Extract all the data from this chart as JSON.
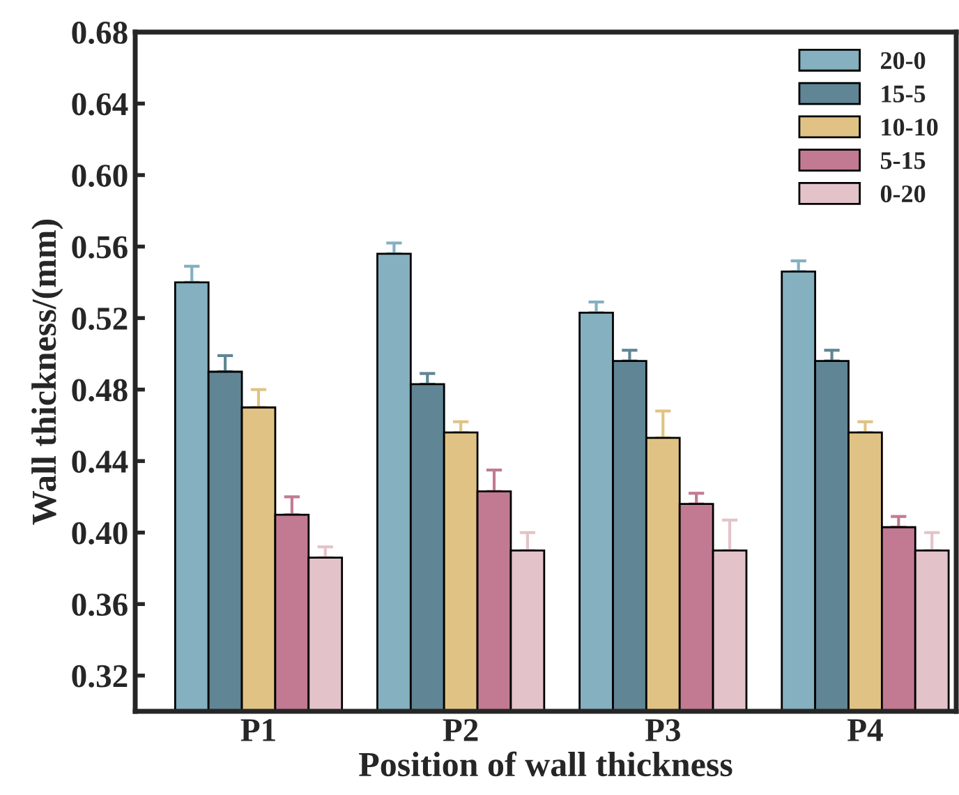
{
  "chart_data": {
    "type": "bar",
    "xlabel": "Position of wall thickness",
    "ylabel": "Wall thickness/(mm)",
    "categories": [
      "P1",
      "P2",
      "P3",
      "P4"
    ],
    "series": [
      {
        "name": "20-0",
        "color": "#84b0c0",
        "values": [
          0.54,
          0.556,
          0.523,
          0.546
        ],
        "errors": [
          [
            0.54,
            0.549
          ],
          [
            0.556,
            0.562
          ],
          [
            0.523,
            0.529
          ],
          [
            0.546,
            0.552
          ]
        ]
      },
      {
        "name": "15-5",
        "color": "#608595",
        "values": [
          0.49,
          0.483,
          0.496,
          0.496
        ],
        "errors": [
          [
            0.49,
            0.499
          ],
          [
            0.483,
            0.489
          ],
          [
            0.496,
            0.502
          ],
          [
            0.496,
            0.502
          ]
        ]
      },
      {
        "name": "10-10",
        "color": "#e0c384",
        "values": [
          0.47,
          0.456,
          0.453,
          0.456
        ],
        "errors": [
          [
            0.47,
            0.48
          ],
          [
            0.456,
            0.462
          ],
          [
            0.453,
            0.468
          ],
          [
            0.456,
            0.462
          ]
        ]
      },
      {
        "name": "5-15",
        "color": "#c27a93",
        "values": [
          0.41,
          0.423,
          0.416,
          0.403
        ],
        "errors": [
          [
            0.41,
            0.42
          ],
          [
            0.423,
            0.435
          ],
          [
            0.416,
            0.422
          ],
          [
            0.403,
            0.409
          ]
        ]
      },
      {
        "name": "0-20",
        "color": "#e3c3c9",
        "values": [
          0.386,
          0.39,
          0.39,
          0.39
        ],
        "errors": [
          [
            0.386,
            0.392
          ],
          [
            0.39,
            0.4
          ],
          [
            0.39,
            0.407
          ],
          [
            0.39,
            0.4
          ]
        ]
      }
    ],
    "ylim": [
      0.3,
      0.68
    ],
    "yticks": [
      0.32,
      0.36,
      {
        "value": 0.4,
        "label": "0.40"
      },
      0.44,
      0.48,
      0.52,
      0.56,
      {
        "value": 0.6,
        "label": "0.60"
      },
      0.64,
      0.68
    ],
    "grid": false,
    "legend": "top right"
  }
}
